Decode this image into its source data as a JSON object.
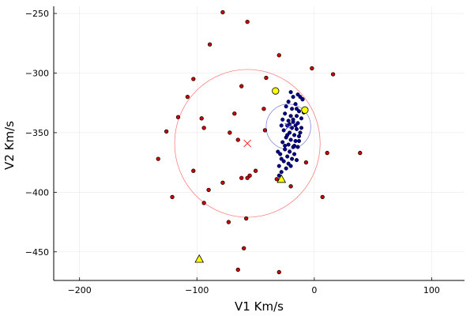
{
  "chart_data": {
    "type": "scatter",
    "xlabel": "V1 Km/s",
    "ylabel": "V2 Km/s",
    "xlim": [
      -222,
      128
    ],
    "ylim": [
      -474,
      -244
    ],
    "x_ticks": [
      -200,
      -100,
      0,
      100
    ],
    "y_ticks": [
      -450,
      -400,
      -350,
      -300,
      -250
    ],
    "grid": true,
    "legend": "none",
    "colors": {
      "field": "#cc0000",
      "members": "#00008b",
      "highlight": "#ffff00",
      "outline": "#000000",
      "big_circle": "#ff6f6f",
      "small_circle": "#7b7bdc",
      "big_center": "#ff3030",
      "small_center": "#4040c0"
    },
    "series": [
      {
        "marker": "circle-red",
        "points": [
          [
            -78,
            -249
          ],
          [
            -57,
            -257
          ],
          [
            -89,
            -276
          ],
          [
            -30,
            -285
          ],
          [
            -2,
            -296
          ],
          [
            16,
            -301
          ],
          [
            -103,
            -305
          ],
          [
            -41,
            -304
          ],
          [
            -62,
            -311
          ],
          [
            -108,
            -320
          ],
          [
            -43,
            -330
          ],
          [
            -68,
            -334
          ],
          [
            -116,
            -337
          ],
          [
            -10,
            -322
          ],
          [
            -96,
            -338
          ],
          [
            -94,
            -346
          ],
          [
            -126,
            -349
          ],
          [
            -72,
            -350
          ],
          [
            -42,
            -348
          ],
          [
            -65,
            -356
          ],
          [
            11,
            -367
          ],
          [
            39,
            -367
          ],
          [
            -133,
            -372
          ],
          [
            -103,
            -382
          ],
          [
            -50,
            -382
          ],
          [
            -55,
            -386
          ],
          [
            -57,
            -388
          ],
          [
            -32,
            -389
          ],
          [
            -62,
            -388
          ],
          [
            -78,
            -392
          ],
          [
            -90,
            -398
          ],
          [
            -20,
            -395
          ],
          [
            -121,
            -404
          ],
          [
            7,
            -404
          ],
          [
            -94,
            -409
          ],
          [
            -58,
            -422
          ],
          [
            -73,
            -425
          ],
          [
            -60,
            -447
          ],
          [
            -65,
            -465
          ],
          [
            -30,
            -467
          ],
          [
            -7,
            -375
          ]
        ]
      },
      {
        "marker": "circle-blue",
        "points": [
          [
            -20,
            -316
          ],
          [
            -18,
            -320
          ],
          [
            -14,
            -318
          ],
          [
            -12,
            -320
          ],
          [
            -22,
            -324
          ],
          [
            -16,
            -326
          ],
          [
            -10,
            -322
          ],
          [
            -24,
            -328
          ],
          [
            -19,
            -330
          ],
          [
            -13,
            -332
          ],
          [
            -9,
            -333
          ],
          [
            -25,
            -334
          ],
          [
            -20,
            -336
          ],
          [
            -15,
            -336
          ],
          [
            -11,
            -338
          ],
          [
            -27,
            -339
          ],
          [
            -22,
            -340
          ],
          [
            -18,
            -341
          ],
          [
            -14,
            -342
          ],
          [
            -28,
            -344
          ],
          [
            -23,
            -344
          ],
          [
            -19,
            -346
          ],
          [
            -15,
            -347
          ],
          [
            -11,
            -346
          ],
          [
            -26,
            -348
          ],
          [
            -21,
            -350
          ],
          [
            -17,
            -352
          ],
          [
            -13,
            -353
          ],
          [
            -24,
            -354
          ],
          [
            -20,
            -356
          ],
          [
            -16,
            -357
          ],
          [
            -27,
            -358
          ],
          [
            -22,
            -360
          ],
          [
            -18,
            -362
          ],
          [
            -14,
            -362
          ],
          [
            -25,
            -364
          ],
          [
            -21,
            -366
          ],
          [
            -17,
            -368
          ],
          [
            -29,
            -368
          ],
          [
            -23,
            -370
          ],
          [
            -19,
            -372
          ],
          [
            -15,
            -373
          ],
          [
            -26,
            -374
          ],
          [
            -22,
            -376
          ],
          [
            -30,
            -378
          ],
          [
            -24,
            -380
          ],
          [
            -28,
            -383
          ],
          [
            -30,
            -386
          ],
          [
            -18,
            -339
          ],
          [
            -16,
            -344
          ],
          [
            -21,
            -343
          ],
          [
            -12,
            -350
          ],
          [
            -25,
            -361
          ],
          [
            -31,
            -366
          ],
          [
            -28,
            -372
          ],
          [
            -20,
            -378
          ],
          [
            -17,
            -361
          ],
          [
            -13,
            -357
          ],
          [
            -23,
            -352
          ],
          [
            -15,
            -330
          ]
        ]
      },
      {
        "marker": "circle-yellow",
        "points": [
          [
            -33,
            -315
          ],
          [
            -8,
            -331
          ]
        ]
      },
      {
        "marker": "triangle-yellow",
        "points": [
          [
            -28,
            -389
          ],
          [
            -98,
            -456
          ]
        ]
      },
      {
        "marker": "cross",
        "points": [
          [
            -57,
            -359
          ],
          [
            -22,
            -345
          ]
        ]
      }
    ],
    "circles": [
      {
        "cx": -57,
        "cy": -359,
        "r": 62,
        "color": "big_circle"
      },
      {
        "cx": -22,
        "cy": -345,
        "r": 19,
        "color": "small_circle"
      }
    ]
  }
}
